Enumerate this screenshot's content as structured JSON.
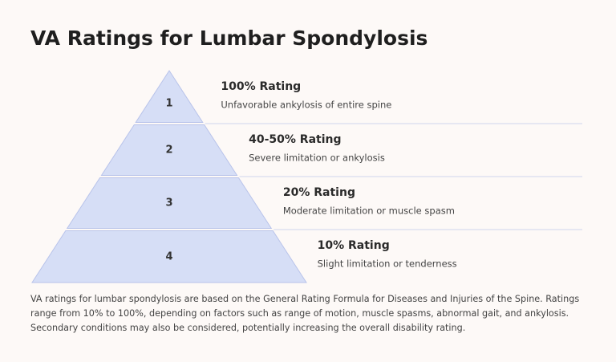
{
  "title": "VA Ratings for Lumbar Spondylosis",
  "levels": [
    {
      "number": "1",
      "heading": "100% Rating",
      "description": "Unfavorable ankylosis of entire spine"
    },
    {
      "number": "2",
      "heading": "40-50% Rating",
      "description": "Severe limitation or ankylosis"
    },
    {
      "number": "3",
      "heading": "20% Rating",
      "description": "Moderate limitation or muscle spasm"
    },
    {
      "number": "4",
      "heading": "10% Rating",
      "description": "Slight limitation or tenderness"
    }
  ],
  "footer": [
    "VA ratings for lumbar spondylosis are based on the General Rating Formula for Diseases and Injuries of the Spine. Ratings",
    "range from 10% to 100%, depending on factors such as range of motion, muscle spasms, abnormal gait, and ankylosis.",
    "Secondary conditions may also be considered, potentially increasing the overall disability rating."
  ]
}
